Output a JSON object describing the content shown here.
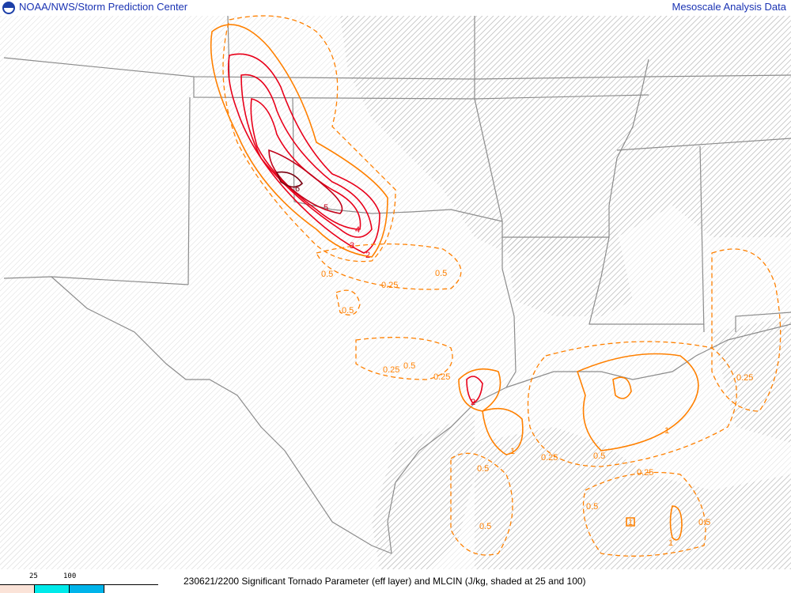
{
  "header": {
    "left_title": "NOAA/NWS/Storm Prediction Center",
    "right_title": "Mesoscale Analysis Data",
    "logo": "noaa-logo"
  },
  "footer": {
    "caption": "230621/2200 Significant Tornado Parameter (eff layer) and MLCIN (J/kg, shaded at 25 and 100)",
    "legend": {
      "ticks": [
        "25",
        "100"
      ],
      "colors": [
        "#fbe3d8",
        "#00eaea",
        "#00b4ea"
      ]
    }
  },
  "colors": {
    "border": "#8c8c8c",
    "hatch": "#b4b4b4",
    "contour_low": "#ff8000",
    "contour_mid": "#e8001a",
    "contour_high": "#7a0010"
  },
  "contour_labels": {
    "stp": [
      "6",
      "5",
      "4",
      "3",
      "2",
      "2",
      "1",
      "1",
      "1",
      "1"
    ],
    "low": [
      "0.5",
      "0.5",
      "0.5",
      "0.5",
      "0.5",
      "0.5",
      "0.5",
      "0.5",
      "0.25",
      "0.25",
      "0.25",
      "0.25",
      "0.25",
      "0.25",
      "0.5"
    ]
  }
}
